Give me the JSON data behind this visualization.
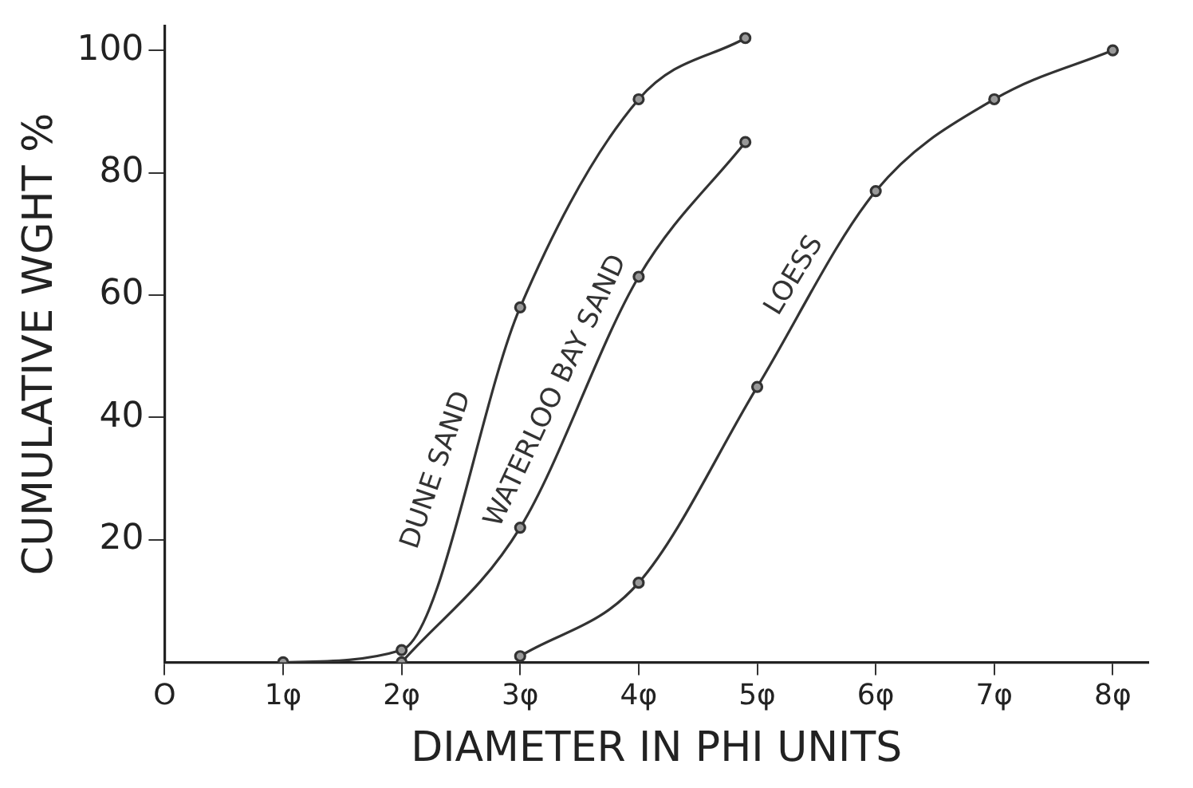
{
  "chart_data": {
    "type": "line",
    "xlabel": "DIAMETER IN PHI UNITS",
    "ylabel": "CUMULATIVE WGHT %",
    "xlim": [
      0,
      8.3
    ],
    "xticks": [
      {
        "value": 0,
        "label": "O"
      },
      {
        "value": 1,
        "label": "1φ"
      },
      {
        "value": 2,
        "label": "2φ"
      },
      {
        "value": 3,
        "label": "3φ"
      },
      {
        "value": 4,
        "label": "4φ"
      },
      {
        "value": 5,
        "label": "5φ"
      },
      {
        "value": 6,
        "label": "6φ"
      },
      {
        "value": 7,
        "label": "7φ"
      },
      {
        "value": 8,
        "label": "8φ"
      }
    ],
    "ylim": [
      0,
      104
    ],
    "yticks": [
      20,
      40,
      60,
      80,
      100
    ],
    "grid": false,
    "legend": false,
    "marker": "circle",
    "line_style": "solid",
    "series": [
      {
        "name": "DUNE SAND",
        "color": "#333333",
        "x": [
          1,
          2,
          3,
          4,
          4.9
        ],
        "values": [
          0,
          2,
          58,
          92,
          102
        ]
      },
      {
        "name": "WATERLOO BAY SAND",
        "color": "#333333",
        "x": [
          2,
          3,
          4,
          4.9
        ],
        "values": [
          0,
          22,
          63,
          85
        ]
      },
      {
        "name": "LOESS",
        "color": "#333333",
        "x": [
          3,
          4,
          5,
          6,
          7,
          8
        ],
        "values": [
          1,
          13,
          45,
          77,
          92,
          100
        ]
      }
    ]
  }
}
